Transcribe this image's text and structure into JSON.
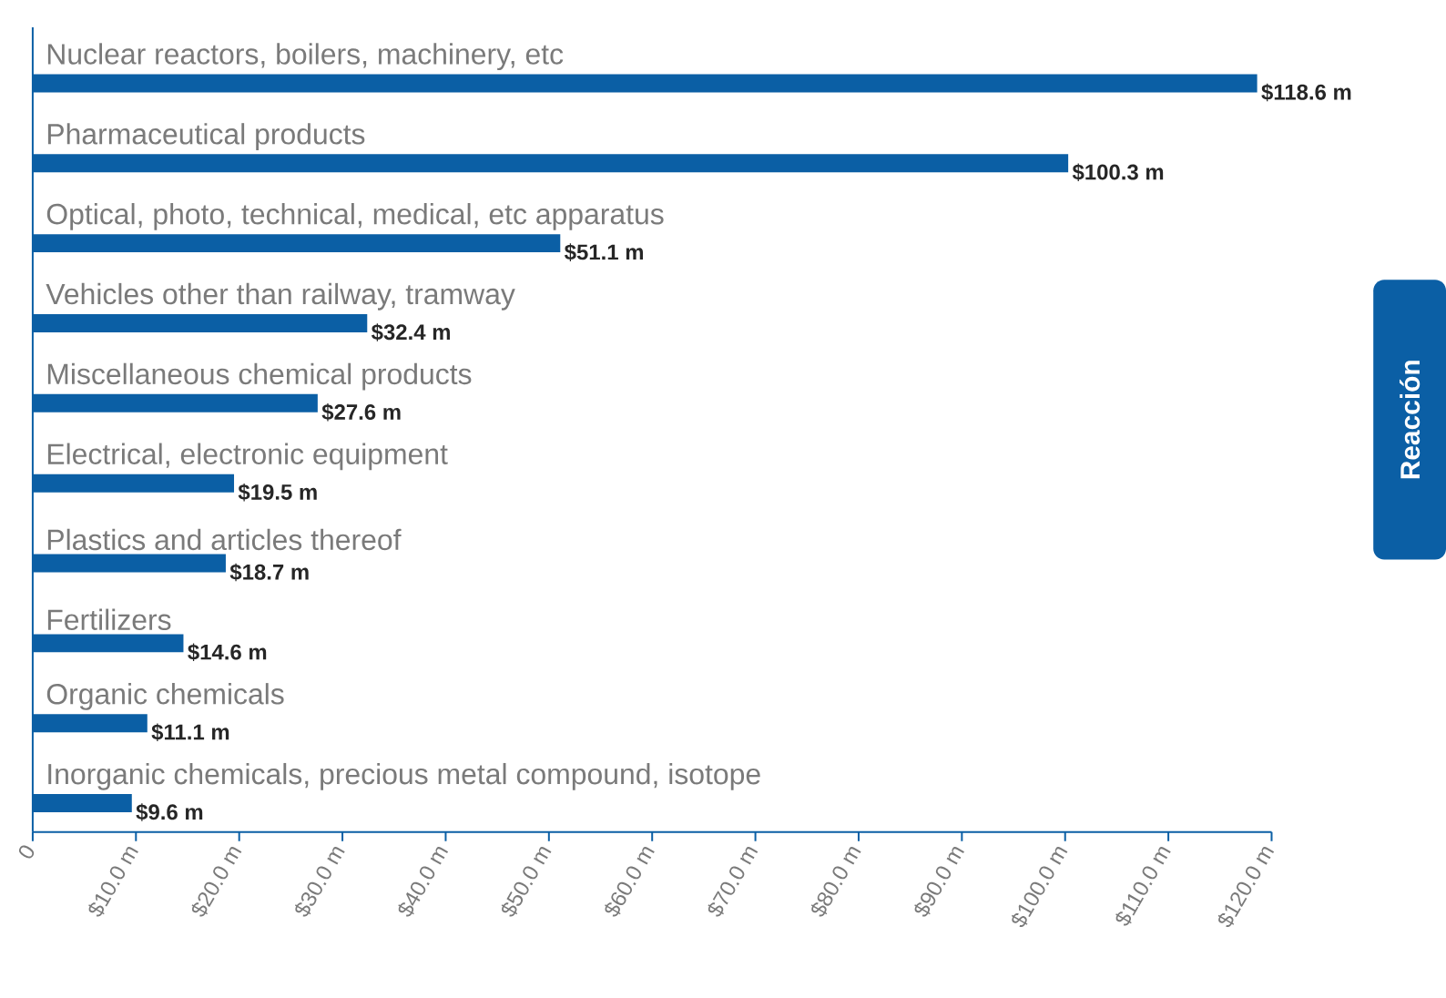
{
  "chart_data": {
    "type": "bar",
    "orientation": "horizontal",
    "color": "#0b5fa5",
    "categories": [
      "Nuclear reactors, boilers, machinery, etc",
      "Pharmaceutical products",
      "Optical, photo, technical, medical, etc apparatus",
      "Vehicles other than railway, tramway",
      "Miscellaneous chemical products",
      "Electrical, electronic equipment",
      "Plastics and articles thereof",
      "Fertilizers",
      "Organic chemicals",
      "Inorganic chemicals, precious metal compound, isotope"
    ],
    "values": [
      118.6,
      100.3,
      51.1,
      32.4,
      27.6,
      19.5,
      18.7,
      14.6,
      11.1,
      9.6
    ],
    "value_labels": [
      "$118.6 m",
      "$100.3 m",
      "$51.1 m",
      "$32.4 m",
      "$27.6 m",
      "$19.5 m",
      "$18.7 m",
      "$14.6 m",
      "$11.1 m",
      "$9.6 m"
    ],
    "xlim": [
      0,
      120
    ],
    "xticks": [
      0,
      {
        "value": 10,
        "label": "$10.0 m"
      },
      {
        "value": 20,
        "label": "$20.0 m"
      },
      {
        "value": 30,
        "label": "$30.0 m"
      },
      {
        "value": 40,
        "label": "$40.0 m"
      },
      {
        "value": 50,
        "label": "$50.0 m"
      },
      {
        "value": 60,
        "label": "$60.0 m"
      },
      {
        "value": 70,
        "label": "$70.0 m"
      },
      {
        "value": 80,
        "label": "$80.0 m"
      },
      {
        "value": 90,
        "label": "$90.0 m"
      },
      {
        "value": 100,
        "label": "$100.0 m"
      },
      {
        "value": 110,
        "label": "$110.0 m"
      },
      {
        "value": 120,
        "label": "$120.0 m"
      }
    ],
    "annotations": [
      "Reacción"
    ]
  }
}
